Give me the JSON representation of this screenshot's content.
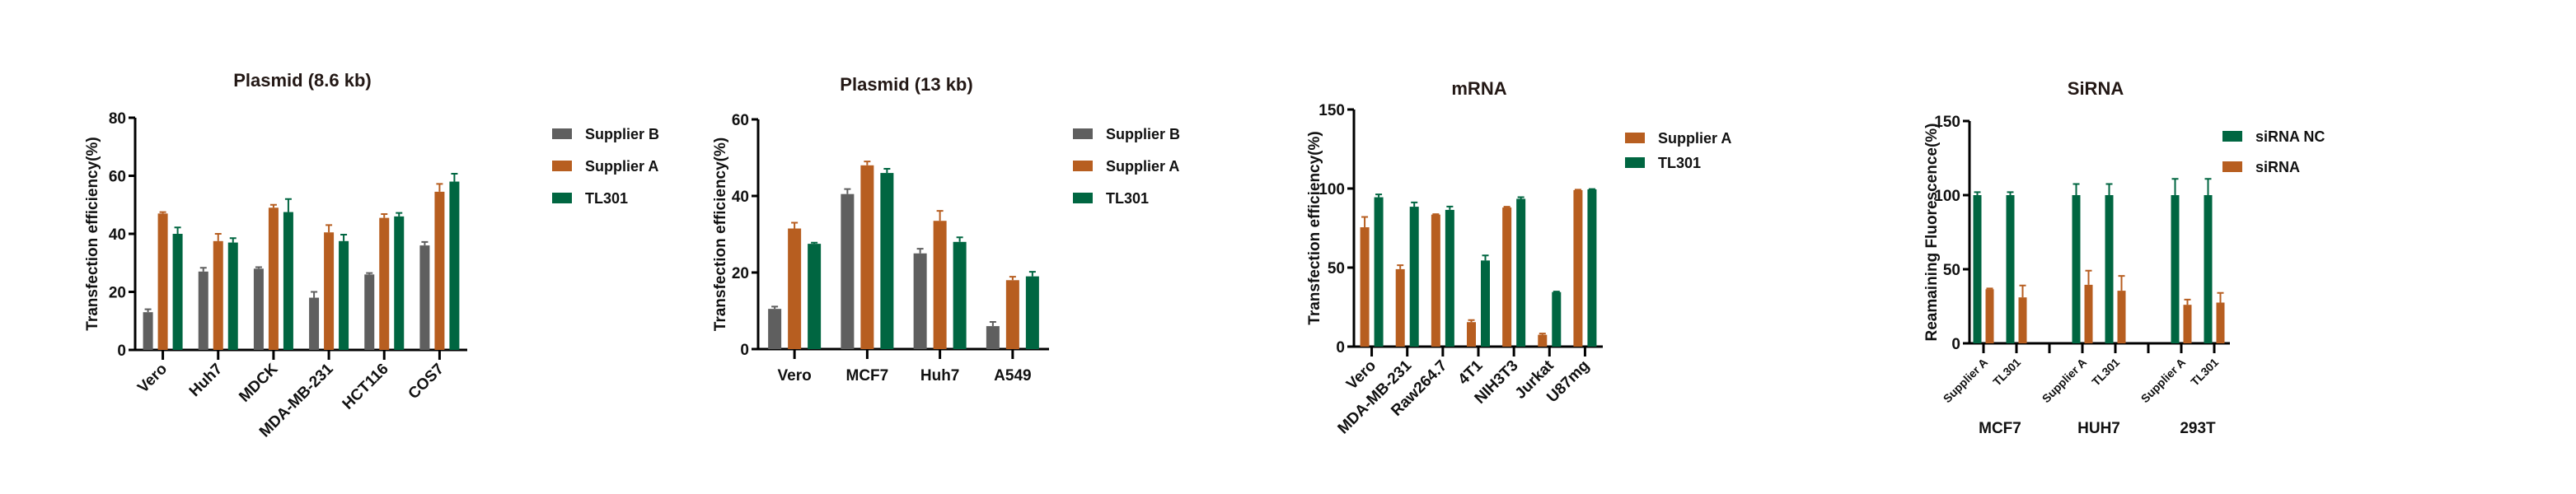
{
  "colors": {
    "supplier_b": "#5f5f5f",
    "supplier_a": "#b75e20",
    "tl301": "#006641"
  },
  "chart_data": [
    {
      "type": "bar",
      "title": "Plasmid (8.6 kb)",
      "ylabel": "Transfection efficiency(%)",
      "ylim": [
        0,
        80
      ],
      "yticks": [
        0,
        20,
        40,
        60,
        80
      ],
      "categories": [
        "Vero",
        "Huh7",
        "MDCK",
        "MDA-MB-231",
        "HCT116",
        "COS7"
      ],
      "legend_position": "right",
      "series": [
        {
          "name": "Supplier B",
          "color_key": "supplier_b",
          "values": [
            13,
            27,
            28,
            18,
            26,
            36
          ],
          "errors": [
            1,
            1.3,
            0.5,
            2,
            0.5,
            1.2
          ]
        },
        {
          "name": "Supplier A",
          "color_key": "supplier_a",
          "values": [
            47,
            37.5,
            49,
            40.5,
            45.5,
            54.5
          ],
          "errors": [
            0.5,
            2.5,
            1,
            2.5,
            1.3,
            2.7
          ]
        },
        {
          "name": "TL301",
          "color_key": "tl301",
          "values": [
            40,
            37,
            47.5,
            37.5,
            46,
            58
          ],
          "errors": [
            2.2,
            1.5,
            4.5,
            2.2,
            1.2,
            2.7
          ]
        }
      ]
    },
    {
      "type": "bar",
      "title": "Plasmid (13 kb)",
      "ylabel": "Transfection efficiency(%)",
      "ylim": [
        0,
        60
      ],
      "yticks": [
        0,
        20,
        40,
        60
      ],
      "categories": [
        "Vero",
        "MCF7",
        "Huh7",
        "A549"
      ],
      "legend_position": "right",
      "series": [
        {
          "name": "Supplier B",
          "color_key": "supplier_b",
          "values": [
            10.5,
            40.5,
            25,
            6
          ],
          "errors": [
            0.6,
            1.3,
            1.2,
            1.1
          ]
        },
        {
          "name": "Supplier A",
          "color_key": "supplier_a",
          "values": [
            31.5,
            48,
            33.5,
            18
          ],
          "errors": [
            1.5,
            1,
            2.6,
            0.9
          ]
        },
        {
          "name": "TL301",
          "color_key": "tl301",
          "values": [
            27.5,
            46,
            28,
            19
          ],
          "errors": [
            0.3,
            1.1,
            1.2,
            1.2
          ]
        }
      ]
    },
    {
      "type": "bar",
      "title": "mRNA",
      "ylabel": "Transfection efficiency(%)",
      "ylim": [
        0,
        150
      ],
      "yticks": [
        0,
        50,
        100,
        150
      ],
      "categories": [
        "Vero",
        "MDA-MB-231",
        "Raw264.7",
        "4T1",
        "NIH3T3",
        "Jurkat",
        "U87mg"
      ],
      "legend_position": "right",
      "series": [
        {
          "name": "Supplier A",
          "color_key": "supplier_a",
          "values": [
            75.5,
            49,
            83.5,
            15.5,
            88,
            7.5,
            99
          ],
          "errors": [
            6.5,
            2.5,
            0.3,
            1.3,
            0.5,
            0.8,
            0.3
          ]
        },
        {
          "name": "TL301",
          "color_key": "tl301",
          "values": [
            94.5,
            88.5,
            86.5,
            54.5,
            93.5,
            34.5,
            99.5
          ],
          "errors": [
            1.8,
            2.7,
            2.1,
            3.2,
            1,
            0.3,
            0.2
          ]
        }
      ]
    },
    {
      "type": "bar",
      "title": "SiRNA",
      "ylabel": "Reamaining Fluorescence(%)",
      "ylim": [
        0,
        150
      ],
      "yticks": [
        0,
        50,
        100,
        150
      ],
      "groups": [
        "MCF7",
        "HUH7",
        "293T"
      ],
      "categories": [
        "Supplier A",
        "TL301",
        "Supplier A",
        "TL301",
        "Supplier A",
        "TL301"
      ],
      "legend_position": "right",
      "series": [
        {
          "name": "siRNA NC",
          "color_key": "tl301",
          "values": [
            100,
            100,
            100,
            100,
            100,
            100
          ],
          "errors": [
            2,
            2,
            7.5,
            7.5,
            11,
            11
          ]
        },
        {
          "name": "siRNA",
          "color_key": "supplier_a",
          "values": [
            36.5,
            31,
            39.5,
            35.5,
            26,
            27.5
          ],
          "errors": [
            0.5,
            8,
            9.5,
            10,
            3.5,
            6.5
          ]
        }
      ]
    }
  ]
}
